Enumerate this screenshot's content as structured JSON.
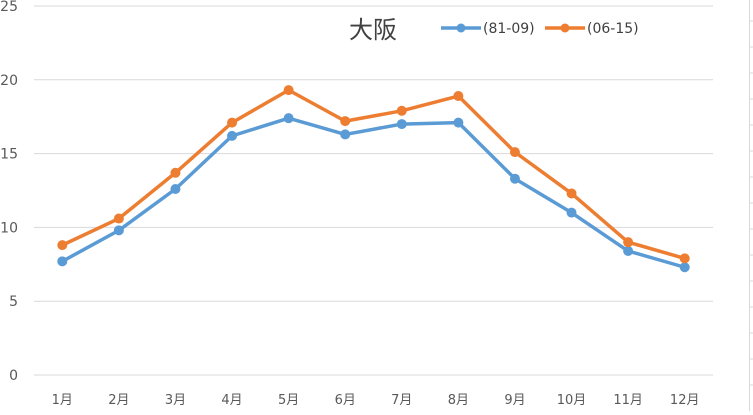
{
  "chart_data": {
    "type": "line",
    "title": "大阪",
    "xlabel": "",
    "ylabel": "",
    "ylim": [
      0,
      25
    ],
    "yticks": [
      0,
      5,
      10,
      15,
      20,
      25
    ],
    "grid": true,
    "legend_position": "top-right",
    "categories": [
      "1月",
      "2月",
      "3月",
      "4月",
      "5月",
      "6月",
      "7月",
      "8月",
      "9月",
      "10月",
      "11月",
      "12月"
    ],
    "series": [
      {
        "name": "(81-09)",
        "color": "#5B9BD5",
        "values": [
          7.7,
          9.8,
          12.6,
          16.2,
          17.4,
          16.3,
          17.0,
          17.1,
          13.3,
          11.0,
          8.4,
          7.3
        ]
      },
      {
        "name": "(06-15)",
        "color": "#ED7D31",
        "values": [
          8.8,
          10.6,
          13.7,
          17.1,
          19.3,
          17.2,
          17.9,
          18.9,
          15.1,
          12.3,
          9.0,
          7.9
        ]
      }
    ]
  },
  "colors": {
    "gridline": "#d9d9d9",
    "tick_text": "#595959",
    "title_text": "#404040"
  }
}
